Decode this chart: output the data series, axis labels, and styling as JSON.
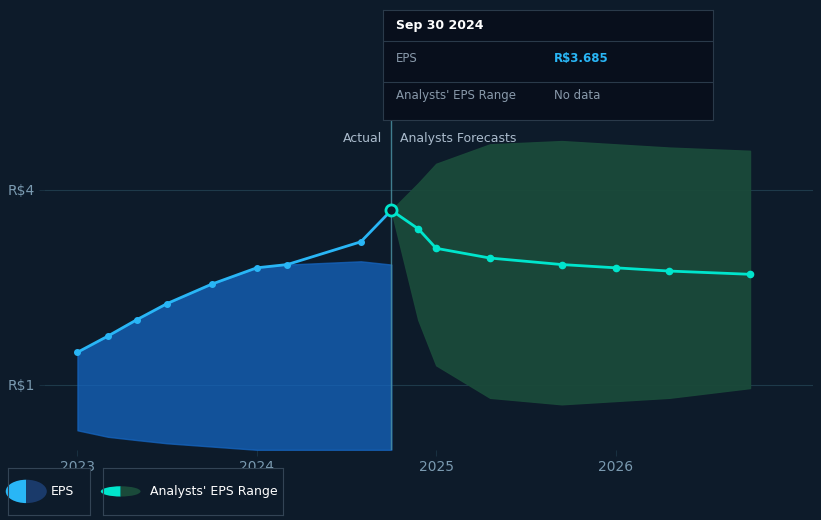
{
  "bg_color": "#0d1b2a",
  "plot_bg_color": "#0d1b2a",
  "actual_x": [
    2023.0,
    2023.17,
    2023.33,
    2023.5,
    2023.75,
    2024.0,
    2024.17,
    2024.58,
    2024.75
  ],
  "actual_y": [
    1.5,
    1.75,
    2.0,
    2.25,
    2.55,
    2.8,
    2.85,
    3.2,
    3.685
  ],
  "actual_fill_upper": [
    1.5,
    1.75,
    2.0,
    2.25,
    2.55,
    2.8,
    2.85,
    2.9,
    2.85
  ],
  "actual_fill_lower": [
    0.3,
    0.2,
    0.15,
    0.1,
    0.05,
    0.0,
    0.0,
    0.0,
    0.0
  ],
  "forecast_x": [
    2024.75,
    2024.9,
    2025.0,
    2025.3,
    2025.7,
    2026.0,
    2026.3,
    2026.75
  ],
  "forecast_y": [
    3.685,
    3.4,
    3.1,
    2.95,
    2.85,
    2.8,
    2.75,
    2.7
  ],
  "forecast_upper": [
    3.685,
    4.1,
    4.4,
    4.7,
    4.75,
    4.7,
    4.65,
    4.6
  ],
  "forecast_lower": [
    3.685,
    2.0,
    1.3,
    0.8,
    0.7,
    0.75,
    0.8,
    0.95
  ],
  "divider_x": 2024.75,
  "ylim_min": 0.0,
  "ylim_max": 5.2,
  "xlim_min": 2022.82,
  "xlim_max": 2027.1,
  "yticks": [
    1,
    4
  ],
  "ytick_labels": [
    "R$1",
    "R$4"
  ],
  "xticks": [
    2023,
    2024,
    2025,
    2026
  ],
  "xtick_labels": [
    "2023",
    "2024",
    "2025",
    "2026"
  ],
  "actual_line_color": "#29b6f6",
  "actual_fill_color": "#1565c0",
  "actual_fill_alpha": 0.75,
  "forecast_line_color": "#00e5cc",
  "forecast_fill_color": "#1a4a3a",
  "forecast_fill_alpha": 0.95,
  "divider_color": "#4a8fa0",
  "grid_color": "#1e3a4a",
  "tooltip_date": "Sep 30 2024",
  "tooltip_eps_label": "EPS",
  "tooltip_eps_value": "R$3.685",
  "tooltip_eps_value_color": "#29b6f6",
  "tooltip_range_label": "Analysts' EPS Range",
  "tooltip_range_value": "No data",
  "tooltip_bg": "#080f1c",
  "tooltip_border_color": "#2a3a4a",
  "actual_label": "Actual",
  "forecast_label": "Analysts Forecasts",
  "label_color": "#aabbcc",
  "legend_eps": "EPS",
  "legend_range": "Analysts' EPS Range",
  "highlight_point_x": 2024.75,
  "highlight_point_y": 3.685,
  "tick_color": "#7a9ab0",
  "tick_fontsize": 10
}
